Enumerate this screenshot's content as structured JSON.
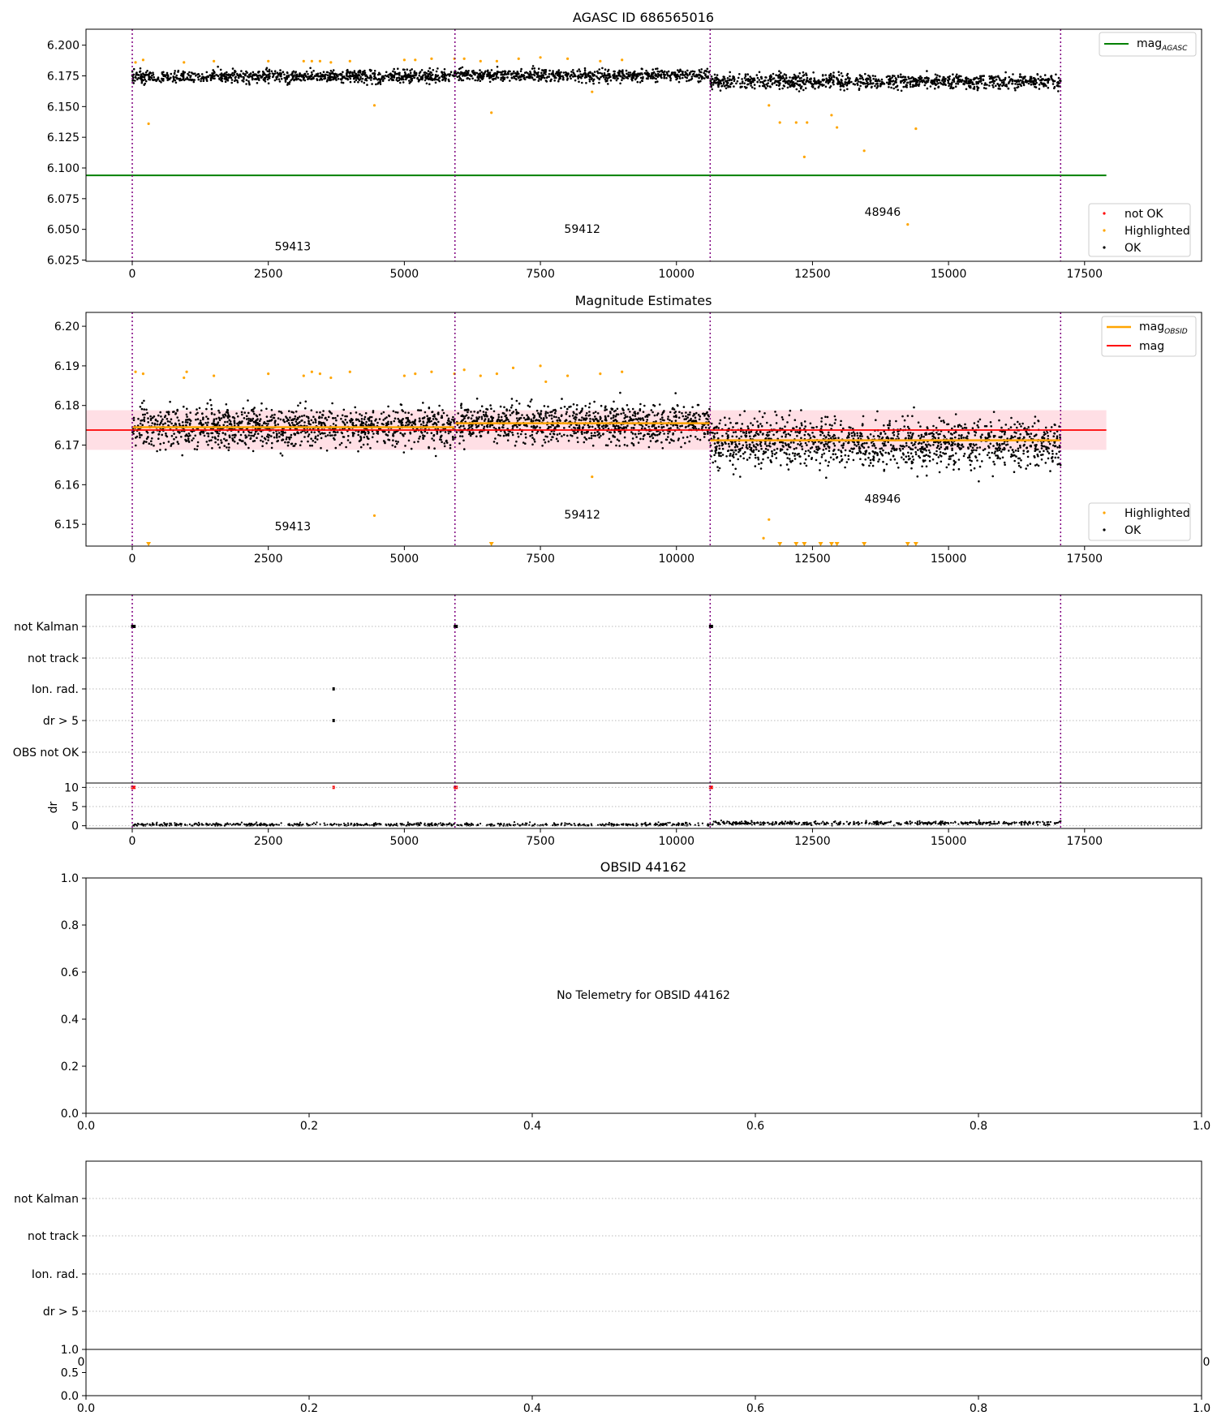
{
  "chart_data": [
    {
      "type": "scatter",
      "title": "AGASC ID 686565016",
      "xlim": [
        -850,
        19650
      ],
      "ylim": [
        6.024,
        6.213
      ],
      "x_ticks": [
        0,
        2500,
        5000,
        7500,
        10000,
        12500,
        15000,
        17500
      ],
      "y_ticks": [
        6.025,
        6.05,
        6.075,
        6.1,
        6.125,
        6.15,
        6.175,
        6.2
      ],
      "grid": false,
      "obs_boundaries": [
        0,
        5930,
        10620,
        17060
      ],
      "obs_labels": [
        {
          "text": "59413",
          "x": 2950,
          "y": 6.033
        },
        {
          "text": "59412",
          "x": 8270,
          "y": 6.047
        },
        {
          "text": "48946",
          "x": 13790,
          "y": 6.061
        }
      ],
      "hlines": [
        {
          "name": "mag_AGASC",
          "y": 6.094,
          "x0": -850,
          "x1": 17900,
          "color": "#008000"
        }
      ],
      "segments": [
        {
          "x0": 0,
          "x1": 5930,
          "center": 6.1745,
          "spread": 0.0045
        },
        {
          "x0": 5930,
          "x1": 10620,
          "center": 6.1755,
          "spread": 0.0045
        },
        {
          "x0": 10620,
          "x1": 17060,
          "center": 6.1705,
          "spread": 0.0055
        }
      ],
      "highlighted": [
        [
          60,
          6.186
        ],
        [
          200,
          6.188
        ],
        [
          300,
          6.136
        ],
        [
          950,
          6.186
        ],
        [
          1500,
          6.187
        ],
        [
          2500,
          6.187
        ],
        [
          3150,
          6.187
        ],
        [
          3300,
          6.187
        ],
        [
          3450,
          6.187
        ],
        [
          3650,
          6.186
        ],
        [
          4000,
          6.187
        ],
        [
          4450,
          6.151
        ],
        [
          5000,
          6.188
        ],
        [
          5200,
          6.188
        ],
        [
          5500,
          6.189
        ],
        [
          5920,
          6.189
        ],
        [
          6100,
          6.189
        ],
        [
          6400,
          6.187
        ],
        [
          6600,
          6.145
        ],
        [
          6700,
          6.187
        ],
        [
          7100,
          6.189
        ],
        [
          7500,
          6.19
        ],
        [
          8000,
          6.189
        ],
        [
          8450,
          6.162
        ],
        [
          8600,
          6.187
        ],
        [
          9000,
          6.188
        ],
        [
          11700,
          6.151
        ],
        [
          11900,
          6.137
        ],
        [
          12200,
          6.137
        ],
        [
          12350,
          6.109
        ],
        [
          12400,
          6.137
        ],
        [
          12850,
          6.143
        ],
        [
          12950,
          6.133
        ],
        [
          13450,
          6.114
        ],
        [
          14250,
          6.054
        ],
        [
          14400,
          6.132
        ]
      ],
      "legend": {
        "placement": "lower-right",
        "items": [
          {
            "label": "not OK",
            "color": "#ff0000"
          },
          {
            "label": "Highlighted",
            "color": "#ffa500"
          },
          {
            "label": "OK",
            "color": "#000000"
          }
        ]
      },
      "line_legend": {
        "placement": "upper-right",
        "items": [
          {
            "label": "mag",
            "sub": "AGASC",
            "color": "#008000"
          }
        ]
      }
    },
    {
      "type": "scatter",
      "title": "Magnitude Estimates",
      "xlim": [
        -850,
        19650
      ],
      "ylim": [
        6.1445,
        6.2035
      ],
      "x_ticks": [
        0,
        2500,
        5000,
        7500,
        10000,
        12500,
        15000,
        17500
      ],
      "y_ticks": [
        6.15,
        6.16,
        6.17,
        6.18,
        6.19,
        6.2
      ],
      "grid": false,
      "obs_boundaries": [
        0,
        5930,
        10620,
        17060
      ],
      "obs_labels": [
        {
          "text": "59413",
          "x": 2950,
          "y": 6.1485
        },
        {
          "text": "59412",
          "x": 8270,
          "y": 6.1515
        },
        {
          "text": "48946",
          "x": 13790,
          "y": 6.1555
        }
      ],
      "mag": {
        "value": 6.1738,
        "band": [
          6.1688,
          6.1788
        ],
        "x0": -850,
        "x1": 17900,
        "color": "#ff0000"
      },
      "mag_obsid": [
        {
          "x0": 0,
          "x1": 5930,
          "y": 6.1745
        },
        {
          "x0": 5930,
          "x1": 10620,
          "y": 6.1755
        },
        {
          "x0": 10620,
          "x1": 17060,
          "y": 6.1712
        }
      ],
      "segments": [
        {
          "x0": 0,
          "x1": 5930,
          "center": 6.1745,
          "spread": 0.0045
        },
        {
          "x0": 5930,
          "x1": 10620,
          "center": 6.1755,
          "spread": 0.0045
        },
        {
          "x0": 10620,
          "x1": 17060,
          "center": 6.1705,
          "spread": 0.0055
        }
      ],
      "highlighted": [
        [
          60,
          6.1885
        ],
        [
          200,
          6.188
        ],
        [
          950,
          6.187
        ],
        [
          1000,
          6.1885
        ],
        [
          1500,
          6.1875
        ],
        [
          2500,
          6.188
        ],
        [
          3150,
          6.1875
        ],
        [
          3300,
          6.1885
        ],
        [
          3450,
          6.188
        ],
        [
          3650,
          6.187
        ],
        [
          4000,
          6.1885
        ],
        [
          4450,
          6.1522
        ],
        [
          5000,
          6.1875
        ],
        [
          5200,
          6.188
        ],
        [
          5500,
          6.1885
        ],
        [
          5920,
          6.188
        ],
        [
          6100,
          6.189
        ],
        [
          6400,
          6.1875
        ],
        [
          6700,
          6.188
        ],
        [
          7000,
          6.1895
        ],
        [
          7500,
          6.19
        ],
        [
          7600,
          6.186
        ],
        [
          8000,
          6.1875
        ],
        [
          8450,
          6.162
        ],
        [
          8600,
          6.188
        ],
        [
          9000,
          6.1885
        ],
        [
          11700,
          6.1512
        ],
        [
          11600,
          6.1465
        ]
      ],
      "clipped_markers": [
        300,
        6600,
        11900,
        12200,
        12350,
        12650,
        12850,
        12950,
        13450,
        14250,
        14400
      ],
      "legend": {
        "placement": "lower-right",
        "items": [
          {
            "label": "Highlighted",
            "color": "#ffa500"
          },
          {
            "label": "OK",
            "color": "#000000"
          }
        ]
      },
      "line_legend": {
        "placement": "upper-right",
        "items": [
          {
            "label": "mag",
            "sub": "OBSID",
            "color": "#ffa500"
          },
          {
            "label": "mag",
            "sub": "",
            "color": "#ff0000"
          }
        ]
      }
    },
    {
      "type": "scatter",
      "title": "",
      "xlim": [
        -850,
        19650
      ],
      "x_ticks": [
        0,
        2500,
        5000,
        7500,
        10000,
        12500,
        15000,
        17500
      ],
      "flag_categories": [
        "not Kalman",
        "not track",
        "Ion. rad.",
        "dr > 5",
        "OBS not OK"
      ],
      "flag_points": [
        {
          "category": "not Kalman",
          "x": [
            0,
            40,
            5930,
            5960,
            10620,
            10650
          ]
        },
        {
          "category": "Ion. rad.",
          "x": [
            3700
          ]
        },
        {
          "category": "dr > 5",
          "x": [
            3700
          ]
        }
      ],
      "dr_ylim": [
        -0.5,
        10.5
      ],
      "dr_ticks": [
        0,
        5,
        10
      ],
      "dr_label": "dr",
      "dr_red": [
        0,
        40,
        3700,
        5930,
        5960,
        10620,
        10650
      ],
      "obs_boundaries": [
        0,
        5930,
        10620,
        17060
      ]
    },
    {
      "type": "scatter",
      "title": "OBSID 44162",
      "xlim": [
        0,
        1
      ],
      "ylim": [
        0,
        1
      ],
      "x_ticks": [
        "0.0",
        "0.2",
        "0.4",
        "0.6",
        "0.8",
        "1.0"
      ],
      "y_ticks": [
        "0.0",
        "0.2",
        "0.4",
        "0.6",
        "0.8",
        "1.0"
      ],
      "message": "No Telemetry for OBSID 44162"
    },
    {
      "type": "scatter",
      "title": "",
      "flag_categories": [
        "not Kalman",
        "not track",
        "Ion. rad.",
        "dr > 5"
      ],
      "dr_ticks": [
        "0.0",
        "0.5",
        "1.0"
      ],
      "x_ticks": [
        "0.0",
        "0.2",
        "0.4",
        "0.6",
        "0.8",
        "1.0"
      ],
      "hidden_x_ticks": [
        "0",
        "0"
      ]
    }
  ]
}
